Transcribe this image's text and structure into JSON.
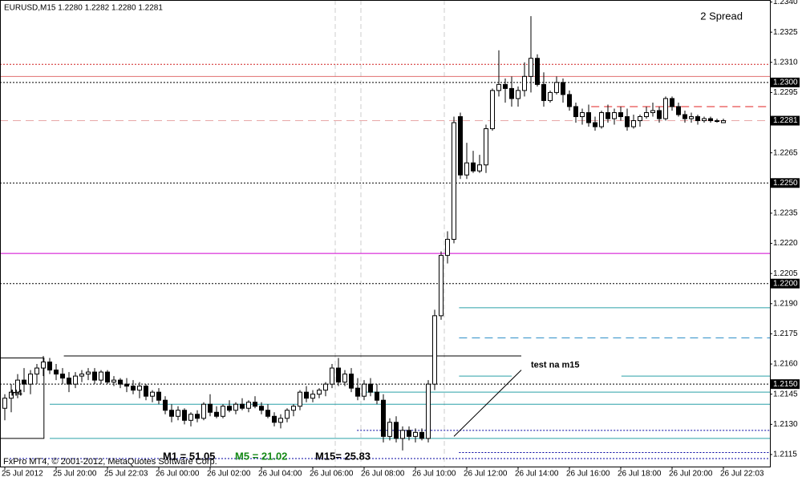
{
  "chart_data": {
    "type": "candlestick",
    "title": "EURUSD,M15  1.2280 1.2282 1.2280 1.2281",
    "categories": [
      "25 Jul 2012",
      null,
      null,
      null,
      null,
      null,
      null,
      null,
      "25 Jul 20:00",
      null,
      null,
      null,
      null,
      null,
      null,
      null,
      "25 Jul 22:03",
      null,
      null,
      null,
      null,
      null,
      null,
      null,
      "26 Jul 00:00",
      null,
      null,
      null,
      null,
      null,
      null,
      null,
      "26 Jul 02:00",
      null,
      null,
      null,
      null,
      null,
      null,
      null,
      "26 Jul 04:00",
      null,
      null,
      null,
      null,
      null,
      null,
      null,
      "26 Jul 06:00",
      null,
      null,
      null,
      null,
      null,
      null,
      null,
      "26 Jul 08:00",
      null,
      null,
      null,
      null,
      null,
      null,
      null,
      "26 Jul 10:00",
      null,
      null,
      null,
      null,
      null,
      null,
      null,
      "26 Jul 12:00",
      null,
      null,
      null,
      null,
      null,
      null,
      null,
      "26 Jul 14:00",
      null,
      null,
      null,
      null,
      null,
      null,
      null,
      "26 Jul 16:00",
      null,
      null,
      null,
      null,
      null,
      null,
      null,
      "26 Jul 18:00",
      null,
      null,
      null,
      null,
      null,
      null,
      null,
      "26 Jul 20:00",
      null,
      null,
      null,
      null,
      null,
      null,
      null,
      "26 Jul 22:03"
    ],
    "open": [
      1.2138,
      1.2143,
      1.2146,
      1.2152,
      1.215,
      1.2155,
      1.2158,
      1.2161,
      1.2157,
      1.2155,
      1.2153,
      1.215,
      1.2154,
      1.2155,
      1.2156,
      1.2152,
      1.2156,
      1.2151,
      1.2152,
      1.215,
      1.2149,
      1.2147,
      1.2149,
      1.2144,
      1.2146,
      1.2142,
      1.2137,
      1.2134,
      1.2137,
      1.2132,
      1.2135,
      1.2133,
      1.214,
      1.2136,
      1.2134,
      1.2139,
      1.2137,
      1.214,
      1.2138,
      1.2141,
      1.2139,
      1.2137,
      1.2134,
      1.2131,
      1.2133,
      1.2137,
      1.2139,
      1.2146,
      1.2143,
      1.2145,
      1.2147,
      1.215,
      1.2158,
      1.2151,
      1.2155,
      1.2148,
      1.2144,
      1.215,
      1.2146,
      1.2142,
      1.2124,
      1.2131,
      1.2123,
      1.2127,
      1.2124,
      1.2126,
      1.2123,
      1.215,
      1.2184,
      1.2214,
      1.2222,
      1.2283,
      1.2254,
      1.226,
      1.2256,
      1.2259,
      1.2277,
      1.2296,
      1.2299,
      1.2297,
      1.2292,
      1.2296,
      1.2303,
      1.2312,
      1.2299,
      1.2291,
      1.2295,
      1.23,
      1.2294,
      1.2288,
      1.2283,
      1.2285,
      1.228,
      1.2278,
      1.2285,
      1.2282,
      1.2285,
      1.2283,
      1.2278,
      1.2281,
      1.2283,
      1.2285,
      1.2286,
      1.2282,
      1.2292,
      1.2288,
      1.2284,
      1.2282,
      1.2283,
      1.2281,
      1.2282,
      1.2281,
      1.228
    ],
    "high": [
      1.2145,
      1.215,
      1.2155,
      1.2158,
      1.2157,
      1.216,
      1.2164,
      1.2163,
      1.216,
      1.2158,
      1.2156,
      1.2156,
      1.2157,
      1.2158,
      1.2158,
      1.2157,
      1.2157,
      1.2154,
      1.2153,
      1.2153,
      1.2152,
      1.2151,
      1.215,
      1.2147,
      1.2148,
      1.2144,
      1.214,
      1.2139,
      1.2138,
      1.2136,
      1.2137,
      1.2141,
      1.2145,
      1.2139,
      1.214,
      1.2142,
      1.2141,
      1.2143,
      1.2142,
      1.2144,
      1.2141,
      1.214,
      1.2136,
      1.2135,
      1.2138,
      1.214,
      1.2147,
      1.2149,
      1.2147,
      1.2148,
      1.2151,
      1.216,
      1.2163,
      1.2157,
      1.2158,
      1.2153,
      1.2152,
      1.2153,
      1.215,
      1.2145,
      1.2133,
      1.2134,
      1.2129,
      1.2129,
      1.2128,
      1.2128,
      1.2152,
      1.2187,
      1.2216,
      1.2226,
      1.2283,
      1.2285,
      1.227,
      1.2266,
      1.2264,
      1.2279,
      1.2297,
      1.2316,
      1.2302,
      1.2303,
      1.2298,
      1.231,
      1.2333,
      1.2314,
      1.2305,
      1.2296,
      1.2303,
      1.2302,
      1.2296,
      1.229,
      1.2287,
      1.2289,
      1.2283,
      1.2286,
      1.2289,
      1.2287,
      1.2288,
      1.2287,
      1.2284,
      1.2284,
      1.2288,
      1.229,
      1.2288,
      1.2293,
      1.2293,
      1.229,
      1.2286,
      1.2285,
      1.2284,
      1.2283,
      1.2283,
      1.2282,
      1.2282
    ],
    "low": [
      1.2132,
      1.2136,
      1.2143,
      1.2146,
      1.2145,
      1.215,
      1.2154,
      1.2155,
      1.2152,
      1.215,
      1.2146,
      1.2148,
      1.2151,
      1.2152,
      1.215,
      1.215,
      1.215,
      1.2149,
      1.2148,
      1.2146,
      1.2145,
      1.2143,
      1.2142,
      1.2141,
      1.214,
      1.2135,
      1.2131,
      1.2132,
      1.213,
      1.2129,
      1.2131,
      1.2132,
      1.2134,
      1.2133,
      1.2133,
      1.2136,
      1.2135,
      1.2137,
      1.2136,
      1.2138,
      1.2135,
      1.2133,
      1.2129,
      1.2128,
      1.2131,
      1.2134,
      1.2137,
      1.2141,
      1.2141,
      1.2143,
      1.2144,
      1.2148,
      1.2149,
      1.2149,
      1.2146,
      1.2142,
      1.2142,
      1.2144,
      1.214,
      1.2121,
      1.2122,
      1.2121,
      1.2117,
      1.2122,
      1.2121,
      1.2122,
      1.2121,
      1.2147,
      1.2182,
      1.221,
      1.222,
      1.2252,
      1.2252,
      1.2255,
      1.2255,
      1.2255,
      1.2276,
      1.2293,
      1.229,
      1.2288,
      1.2288,
      1.2293,
      1.2295,
      1.2298,
      1.2288,
      1.229,
      1.2294,
      1.229,
      1.2286,
      1.228,
      1.2279,
      1.2278,
      1.2276,
      1.2277,
      1.228,
      1.2279,
      1.2281,
      1.2276,
      1.2277,
      1.2278,
      1.2282,
      1.2283,
      1.228,
      1.2281,
      1.2286,
      1.2283,
      1.228,
      1.228,
      1.2279,
      1.228,
      1.228,
      1.228,
      1.228
    ],
    "close": [
      1.2143,
      1.2146,
      1.2152,
      1.215,
      1.2155,
      1.2158,
      1.2161,
      1.2157,
      1.2155,
      1.2153,
      1.215,
      1.2154,
      1.2155,
      1.2156,
      1.2152,
      1.2156,
      1.2151,
      1.2152,
      1.215,
      1.2149,
      1.2147,
      1.2149,
      1.2144,
      1.2146,
      1.2142,
      1.2137,
      1.2134,
      1.2137,
      1.2132,
      1.2135,
      1.2133,
      1.214,
      1.2136,
      1.2134,
      1.2139,
      1.2137,
      1.214,
      1.2138,
      1.2141,
      1.2139,
      1.2137,
      1.2134,
      1.2131,
      1.2133,
      1.2137,
      1.2139,
      1.2146,
      1.2143,
      1.2145,
      1.2147,
      1.215,
      1.2158,
      1.2151,
      1.2155,
      1.2148,
      1.2144,
      1.215,
      1.2146,
      1.2142,
      1.2124,
      1.2131,
      1.2123,
      1.2127,
      1.2124,
      1.2126,
      1.2123,
      1.215,
      1.2184,
      1.2214,
      1.2222,
      1.228,
      1.2254,
      1.226,
      1.2256,
      1.2259,
      1.2277,
      1.2296,
      1.2299,
      1.2297,
      1.2292,
      1.2296,
      1.2303,
      1.2312,
      1.2299,
      1.2291,
      1.2295,
      1.23,
      1.2294,
      1.2288,
      1.2283,
      1.2285,
      1.228,
      1.2278,
      1.2285,
      1.2282,
      1.2285,
      1.2283,
      1.2278,
      1.2281,
      1.2283,
      1.2285,
      1.2286,
      1.2282,
      1.2292,
      1.2288,
      1.2284,
      1.2282,
      1.2283,
      1.2281,
      1.2282,
      1.2281,
      1.2281,
      1.2281
    ],
    "ylim": [
      1.2109,
      1.2341
    ],
    "yticks": [
      {
        "value": 1.234,
        "label": "1.2340"
      },
      {
        "value": 1.2325,
        "label": "1.2325"
      },
      {
        "value": 1.231,
        "label": "1.2310"
      },
      {
        "value": 1.2295,
        "label": "1.2295"
      },
      {
        "value": 1.2265,
        "label": "1.2265"
      },
      {
        "value": 1.2235,
        "label": "1.2235"
      },
      {
        "value": 1.222,
        "label": "1.2220"
      },
      {
        "value": 1.2205,
        "label": "1.2205"
      },
      {
        "value": 1.219,
        "label": "1.2190"
      },
      {
        "value": 1.2175,
        "label": "1.2175"
      },
      {
        "value": 1.216,
        "label": "1.2160"
      },
      {
        "value": 1.2145,
        "label": "1.2145"
      },
      {
        "value": 1.213,
        "label": "1.2130"
      },
      {
        "value": 1.2115,
        "label": "1.2115"
      }
    ],
    "colors": {
      "up": "#ffffff",
      "down": "#000000",
      "wick": "#000000"
    },
    "lines": [
      {
        "price": 1.2309,
        "color": "#d02020",
        "style": "dotted",
        "from": -1,
        "to": 121
      },
      {
        "price": 1.2303,
        "color": "#e07070",
        "style": "solid",
        "from": -1,
        "to": 121
      },
      {
        "price": 1.23,
        "label": "1.2300",
        "color": "#000000",
        "style": "dotted",
        "from": -1,
        "to": 121
      },
      {
        "price": 1.2288,
        "color": "#e02020",
        "style": "dashed",
        "from": 91.4,
        "to": 121
      },
      {
        "price": 1.2281,
        "label": "1.2281",
        "color": "#e8a8a8",
        "style": "dashed",
        "from": -1,
        "to": 121
      },
      {
        "price": 1.225,
        "label": "1.2250",
        "color": "#000000",
        "style": "dotted",
        "from": -1,
        "to": 121
      },
      {
        "price": 1.2215,
        "color": "#d000d0",
        "style": "solid",
        "from": -1,
        "to": 121
      },
      {
        "price": 1.22,
        "label": "1.2200",
        "color": "#000000",
        "style": "dotted",
        "from": -1,
        "to": 121
      },
      {
        "price": 1.2188,
        "color": "#2aa0a8",
        "style": "solid",
        "from": 70.8,
        "to": 121
      },
      {
        "price": 1.2173,
        "color": "#3090c8",
        "style": "dashed",
        "from": 70.8,
        "to": 121
      },
      {
        "price": 1.2164,
        "color": "#000000",
        "style": "solid",
        "from": 9.2,
        "to": 80.5
      },
      {
        "price": 1.2154,
        "color": "#2aa0a8",
        "style": "solid",
        "from": 70.8,
        "to": 79
      },
      {
        "price": 1.2154,
        "color": "#2aa0a8",
        "style": "solid",
        "from": 96.1,
        "to": 121
      },
      {
        "price": 1.215,
        "label": "1.2150",
        "color": "#000000",
        "style": "dotted",
        "from": -1,
        "to": 121
      },
      {
        "price": 1.2146,
        "color": "#2aa0a8",
        "style": "solid",
        "from": 55.8,
        "to": 121
      },
      {
        "price": 1.214,
        "color": "#2aa0a8",
        "style": "solid",
        "from": 7,
        "to": 121
      },
      {
        "price": 1.2127,
        "color": "#0000a0",
        "style": "dotted",
        "from": 54.9,
        "to": 121
      },
      {
        "price": 1.2123,
        "color": "#2aa0a8",
        "style": "solid",
        "from": 7,
        "to": 121
      },
      {
        "price": 1.2116,
        "color": "#0000a0",
        "style": "dotted",
        "from": 70.8,
        "to": 121
      },
      {
        "price": 1.2113,
        "color": "#0000a0",
        "style": "dotted",
        "from": 0.75,
        "to": 121
      }
    ],
    "rectangle": {
      "label": "H4",
      "from": -0.8,
      "to": 6.1,
      "top": 1.2163,
      "bottom": 1.2123
    },
    "trendline": {
      "label": "test na m15",
      "from": [
        70,
        1.2124
      ],
      "to": [
        80.5,
        1.2157
      ]
    },
    "spread": "2 Spread",
    "indicators": [
      {
        "text": "M1 = 51.05",
        "color": "#000000"
      },
      {
        "text": "M5 = 21.02",
        "color": "#168a16"
      },
      {
        "text": "M15= 25.83",
        "color": "#000000"
      }
    ],
    "footer": "FxPro MT4, © 2001-2012, MetaQuotes Software Corp."
  }
}
